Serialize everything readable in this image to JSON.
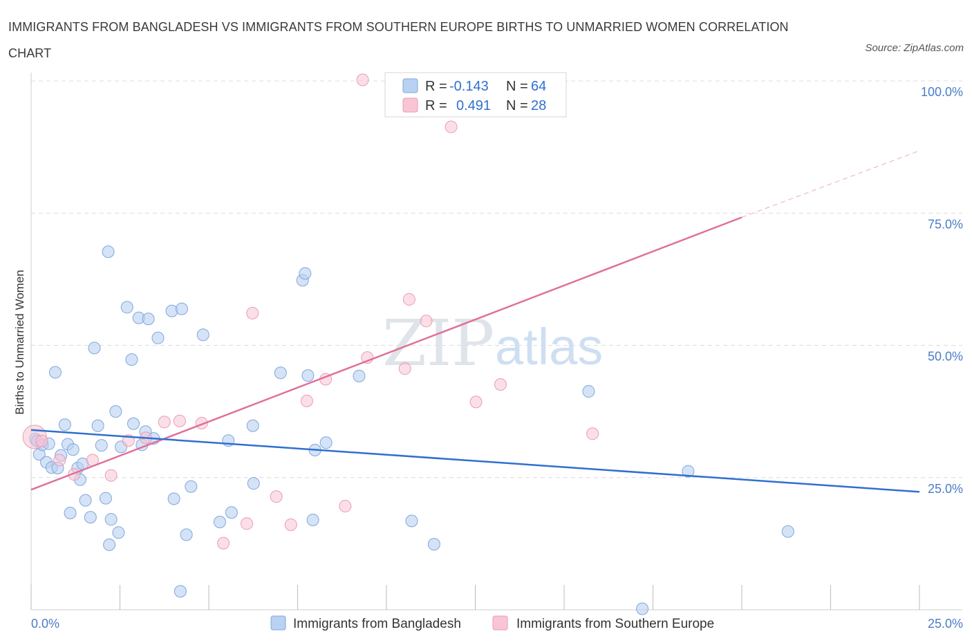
{
  "header": {
    "title": "IMMIGRANTS FROM BANGLADESH VS IMMIGRANTS FROM SOUTHERN EUROPE BIRTHS TO UNMARRIED WOMEN CORRELATION CHART",
    "source": "Source: ZipAtlas.com"
  },
  "watermark": {
    "part1": "ZIP",
    "part2": "atlas"
  },
  "stats": {
    "r_label": "R =",
    "n_label": "N =",
    "series1": {
      "r": "-0.143",
      "n": "64"
    },
    "series2": {
      "r": "0.491",
      "n": "28"
    }
  },
  "colors": {
    "blue_fill": "#b9d1f2",
    "blue_stroke": "#7fa6dc",
    "blue_line": "#2f6fd0",
    "pink_fill": "#f8c5d4",
    "pink_stroke": "#eb9ab4",
    "pink_line": "#e07099",
    "grid": "#dcdcdc",
    "tick_text": "#4a7cc7"
  },
  "chart_data": {
    "type": "scatter",
    "title": "IMMIGRANTS FROM BANGLADESH VS IMMIGRANTS FROM SOUTHERN EUROPE BIRTHS TO UNMARRIED WOMEN CORRELATION CHART",
    "xlabel": "",
    "ylabel": "Births to Unmarried Women",
    "xlim": [
      0,
      25
    ],
    "ylim": [
      0,
      100
    ],
    "x_tick_labels": [
      {
        "value": 0,
        "label": "0.0%"
      },
      {
        "value": 25,
        "label": "25.0%"
      }
    ],
    "y_tick_labels": [
      {
        "value": 25,
        "label": "25.0%"
      },
      {
        "value": 50,
        "label": "50.0%"
      },
      {
        "value": 75,
        "label": "75.0%"
      },
      {
        "value": 100,
        "label": "100.0%"
      }
    ],
    "grid": true,
    "legend_position": "bottom",
    "series": [
      {
        "name": "Immigrants from Bangladesh",
        "color": "blue",
        "r": -0.143,
        "n": 64,
        "trend": {
          "x0": 0,
          "y0": 34.0,
          "x1": 25,
          "y1": 22.3
        },
        "points": [
          {
            "x": 0.12,
            "y": 32.3
          },
          {
            "x": 0.17,
            "y": 31.9
          },
          {
            "x": 0.23,
            "y": 29.4
          },
          {
            "x": 0.32,
            "y": 31.2
          },
          {
            "x": 0.43,
            "y": 27.9
          },
          {
            "x": 0.5,
            "y": 31.4
          },
          {
            "x": 0.58,
            "y": 26.9
          },
          {
            "x": 0.68,
            "y": 44.9
          },
          {
            "x": 0.75,
            "y": 26.8
          },
          {
            "x": 0.84,
            "y": 29.2
          },
          {
            "x": 0.95,
            "y": 35.0
          },
          {
            "x": 1.03,
            "y": 31.3
          },
          {
            "x": 1.1,
            "y": 18.3
          },
          {
            "x": 1.18,
            "y": 30.3
          },
          {
            "x": 1.31,
            "y": 26.8
          },
          {
            "x": 1.38,
            "y": 24.6
          },
          {
            "x": 1.45,
            "y": 27.6
          },
          {
            "x": 1.53,
            "y": 20.7
          },
          {
            "x": 1.67,
            "y": 17.5
          },
          {
            "x": 1.78,
            "y": 49.5
          },
          {
            "x": 1.88,
            "y": 34.8
          },
          {
            "x": 1.98,
            "y": 31.1
          },
          {
            "x": 2.1,
            "y": 21.1
          },
          {
            "x": 2.17,
            "y": 67.7
          },
          {
            "x": 2.25,
            "y": 17.1
          },
          {
            "x": 2.38,
            "y": 37.5
          },
          {
            "x": 2.46,
            "y": 14.6
          },
          {
            "x": 2.53,
            "y": 30.8
          },
          {
            "x": 2.7,
            "y": 57.2
          },
          {
            "x": 2.83,
            "y": 47.3
          },
          {
            "x": 2.88,
            "y": 35.2
          },
          {
            "x": 3.03,
            "y": 55.2
          },
          {
            "x": 3.12,
            "y": 31.2
          },
          {
            "x": 3.22,
            "y": 33.7
          },
          {
            "x": 3.3,
            "y": 55.0
          },
          {
            "x": 3.45,
            "y": 32.4
          },
          {
            "x": 3.57,
            "y": 51.4
          },
          {
            "x": 3.96,
            "y": 56.5
          },
          {
            "x": 4.02,
            "y": 21.0
          },
          {
            "x": 4.24,
            "y": 56.9
          },
          {
            "x": 4.37,
            "y": 14.2
          },
          {
            "x": 4.5,
            "y": 23.3
          },
          {
            "x": 4.84,
            "y": 52.0
          },
          {
            "x": 5.31,
            "y": 16.6
          },
          {
            "x": 5.55,
            "y": 32.0
          },
          {
            "x": 5.64,
            "y": 18.4
          },
          {
            "x": 6.24,
            "y": 34.8
          },
          {
            "x": 6.26,
            "y": 23.9
          },
          {
            "x": 7.02,
            "y": 44.8
          },
          {
            "x": 7.64,
            "y": 62.3
          },
          {
            "x": 7.71,
            "y": 63.6
          },
          {
            "x": 7.79,
            "y": 44.3
          },
          {
            "x": 7.93,
            "y": 17.0
          },
          {
            "x": 7.99,
            "y": 30.2
          },
          {
            "x": 8.3,
            "y": 31.6
          },
          {
            "x": 9.23,
            "y": 44.2
          },
          {
            "x": 10.71,
            "y": 16.8
          },
          {
            "x": 11.34,
            "y": 12.4
          },
          {
            "x": 15.69,
            "y": 41.3
          },
          {
            "x": 18.49,
            "y": 26.2
          },
          {
            "x": 21.3,
            "y": 14.8
          },
          {
            "x": 4.2,
            "y": 3.5
          },
          {
            "x": 2.2,
            "y": 12.3
          },
          {
            "x": 17.2,
            "y": 0.2
          }
        ]
      },
      {
        "name": "Immigrants from Southern Europe",
        "color": "pink",
        "r": 0.491,
        "n": 28,
        "trend": {
          "x0": 0,
          "y0": 22.7,
          "x1": 20.0,
          "y1": 74.2,
          "dashed_to_x": 25,
          "dashed_to_y": 86.8
        },
        "points": [
          {
            "x": 0.1,
            "y": 32.7
          },
          {
            "x": 0.3,
            "y": 31.9
          },
          {
            "x": 0.8,
            "y": 28.3
          },
          {
            "x": 1.21,
            "y": 25.6
          },
          {
            "x": 1.73,
            "y": 28.3
          },
          {
            "x": 2.25,
            "y": 25.4
          },
          {
            "x": 2.74,
            "y": 32.0
          },
          {
            "x": 3.23,
            "y": 32.5
          },
          {
            "x": 3.75,
            "y": 35.5
          },
          {
            "x": 4.18,
            "y": 35.7
          },
          {
            "x": 4.8,
            "y": 35.3
          },
          {
            "x": 5.41,
            "y": 12.6
          },
          {
            "x": 6.07,
            "y": 16.3
          },
          {
            "x": 6.23,
            "y": 56.1
          },
          {
            "x": 6.9,
            "y": 21.4
          },
          {
            "x": 7.31,
            "y": 16.1
          },
          {
            "x": 7.76,
            "y": 39.5
          },
          {
            "x": 8.29,
            "y": 43.6
          },
          {
            "x": 8.84,
            "y": 19.6
          },
          {
            "x": 9.33,
            "y": 100.2
          },
          {
            "x": 9.46,
            "y": 47.7
          },
          {
            "x": 10.52,
            "y": 45.6
          },
          {
            "x": 10.64,
            "y": 58.7
          },
          {
            "x": 11.12,
            "y": 54.6
          },
          {
            "x": 11.82,
            "y": 91.3
          },
          {
            "x": 12.52,
            "y": 39.3
          },
          {
            "x": 13.21,
            "y": 42.6
          },
          {
            "x": 15.8,
            "y": 33.3
          }
        ]
      }
    ]
  },
  "legend": {
    "item1": "Immigrants from Bangladesh",
    "item2": "Immigrants from Southern Europe"
  }
}
